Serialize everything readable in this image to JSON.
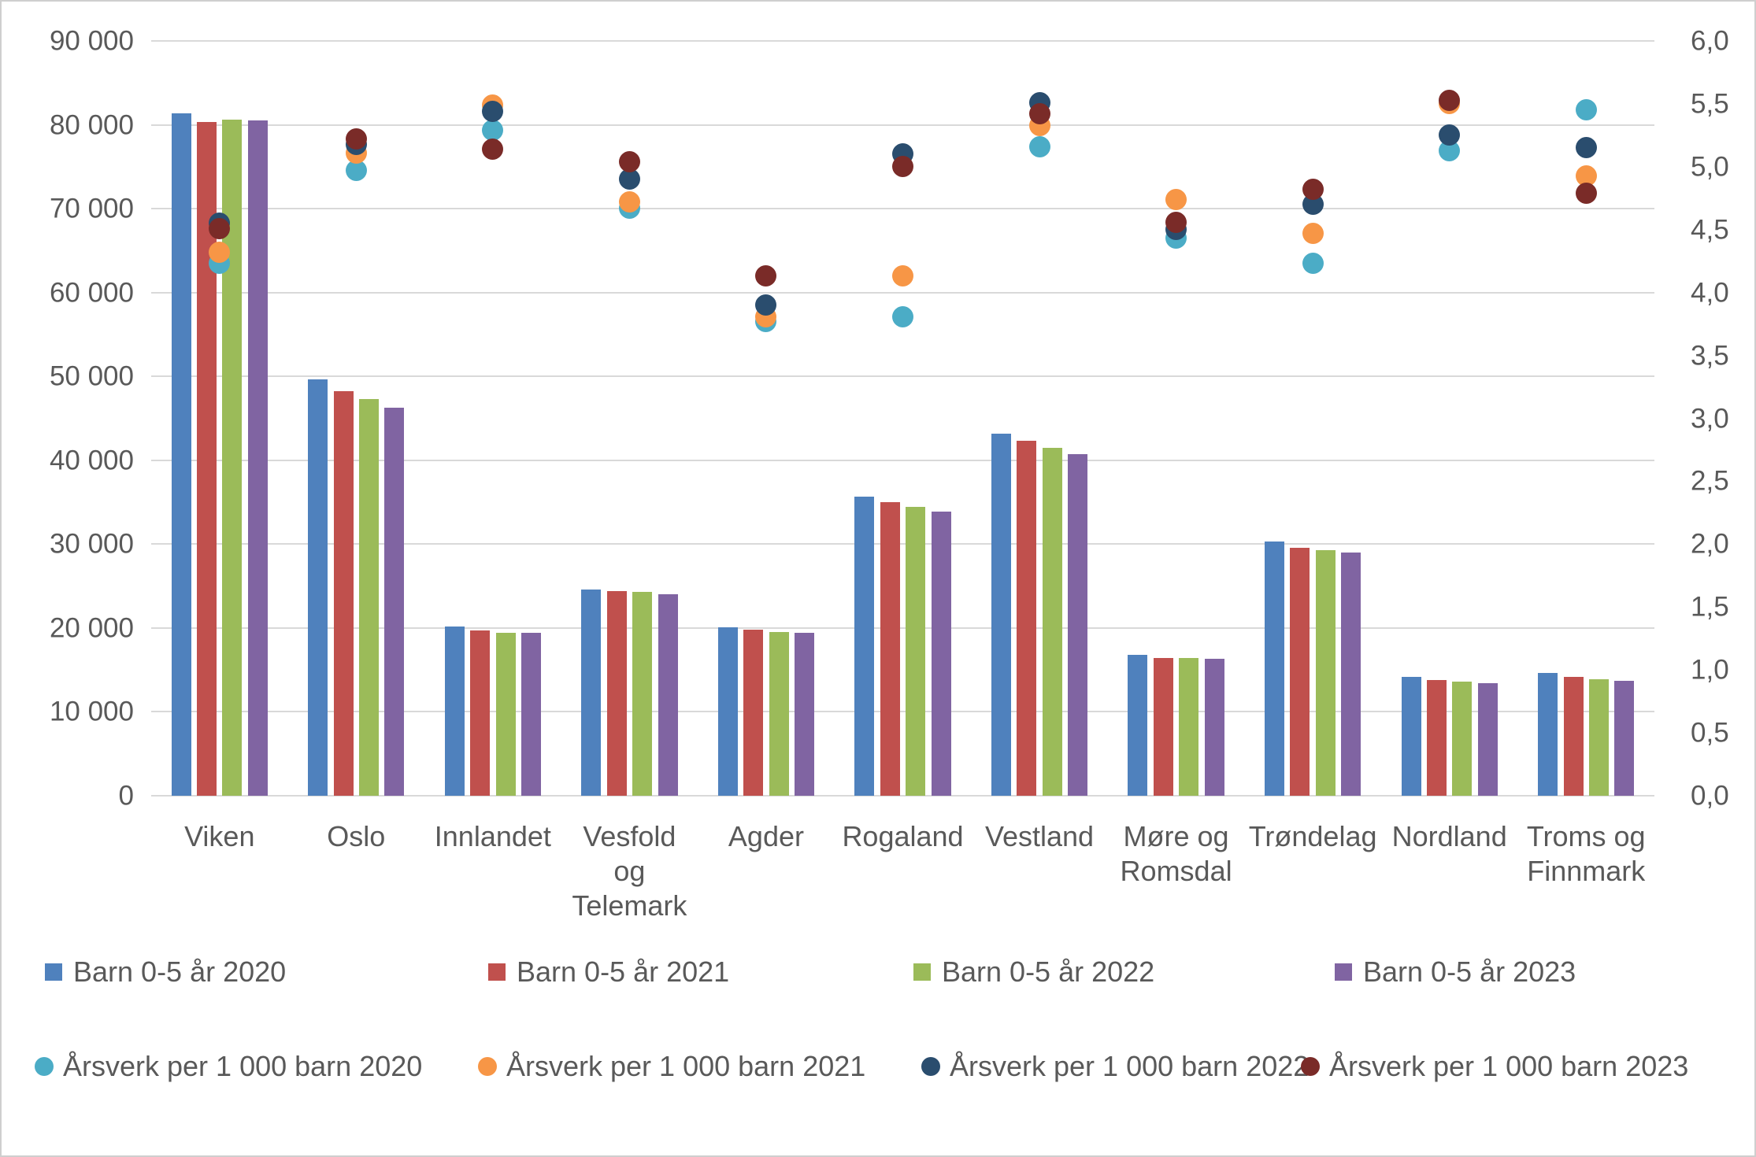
{
  "chart": {
    "title": "",
    "left_axis_ticks": [
      "90 000",
      "80 000",
      "70 000",
      "60 000",
      "50 000",
      "40 000",
      "30 000",
      "20 000",
      "10 000",
      "0"
    ],
    "right_axis_ticks": [
      "6,0",
      "5,5",
      "5,0",
      "4,5",
      "4,0",
      "3,5",
      "3,0",
      "2,5",
      "2,0",
      "1,5",
      "1,0",
      "0,5",
      "0,0"
    ],
    "category_display_lines": [
      [
        "Viken"
      ],
      [
        "Oslo"
      ],
      [
        "Innlandet"
      ],
      [
        "Vesfold",
        "og",
        "Telemark"
      ],
      [
        "Agder"
      ],
      [
        "Rogaland"
      ],
      [
        "Vestland"
      ],
      [
        "Møre og",
        "Romsdal"
      ],
      [
        "Trøndelag"
      ],
      [
        "Nordland"
      ],
      [
        "Troms og",
        "Finnmark"
      ]
    ],
    "colors": {
      "bar_2020": "#4F81BD",
      "bar_2021": "#C0504D",
      "bar_2022": "#9BBB59",
      "bar_2023": "#8064A2",
      "dot_2020": "#4BACC6",
      "dot_2021": "#F79646",
      "dot_2022": "#2A4D6E",
      "dot_2023": "#7A2B28",
      "gridline": "#d9d9d9",
      "axis_text": "#595959"
    },
    "legend_bars": [
      "Barn 0-5 år 2020",
      "Barn 0-5 år 2021",
      "Barn 0-5 år 2022",
      "Barn 0-5 år 2023"
    ],
    "legend_dots": [
      "Årsverk per 1 000 barn 2020",
      "Årsverk per 1 000 barn 2021",
      "Årsverk per 1 000 barn 2022",
      "Årsverk per 1 000 barn 2023"
    ]
  },
  "chart_data": [
    {
      "type": "bar",
      "title": "",
      "axis": "left",
      "ylim": [
        0,
        90000
      ],
      "grid": true,
      "categories": [
        "Viken",
        "Oslo",
        "Innlandet",
        "Vesfold og Telemark",
        "Agder",
        "Rogaland",
        "Vestland",
        "Møre og Romsdal",
        "Trøndelag",
        "Nordland",
        "Troms og Finnmark"
      ],
      "series": [
        {
          "name": "Barn 0-5 år 2020",
          "color": "#4F81BD",
          "values": [
            81400,
            49600,
            20200,
            24600,
            20100,
            35700,
            43200,
            16800,
            30300,
            14200,
            14600
          ]
        },
        {
          "name": "Barn 0-5 år 2021",
          "color": "#C0504D",
          "values": [
            80300,
            48200,
            19700,
            24400,
            19800,
            35000,
            42300,
            16400,
            29600,
            13800,
            14200
          ]
        },
        {
          "name": "Barn 0-5 år 2022",
          "color": "#9BBB59",
          "values": [
            80600,
            47300,
            19400,
            24300,
            19500,
            34400,
            41500,
            16400,
            29300,
            13600,
            13900
          ]
        },
        {
          "name": "Barn 0-5 år 2023",
          "color": "#8064A2",
          "values": [
            80500,
            46300,
            19400,
            24000,
            19400,
            33900,
            40700,
            16300,
            29000,
            13400,
            13700
          ]
        }
      ]
    },
    {
      "type": "scatter",
      "title": "",
      "axis": "right",
      "ylim": [
        0,
        6
      ],
      "grid": false,
      "categories": [
        "Viken",
        "Oslo",
        "Innlandet",
        "Vesfold og Telemark",
        "Agder",
        "Rogaland",
        "Vestland",
        "Møre og Romsdal",
        "Trøndelag",
        "Nordland",
        "Troms og Finnmark"
      ],
      "series": [
        {
          "name": "Årsverk per 1 000 barn 2020",
          "color": "#4BACC6",
          "values": [
            4.23,
            4.97,
            5.29,
            4.67,
            3.77,
            3.81,
            5.16,
            4.43,
            4.23,
            5.13,
            5.45
          ]
        },
        {
          "name": "Årsverk per 1 000 barn 2021",
          "color": "#F79646",
          "values": [
            4.32,
            5.11,
            5.49,
            4.72,
            3.81,
            4.13,
            5.33,
            4.74,
            4.47,
            5.5,
            4.93
          ]
        },
        {
          "name": "Årsverk per 1 000 barn 2022",
          "color": "#2A4D6E",
          "values": [
            4.55,
            5.18,
            5.44,
            4.9,
            3.9,
            5.1,
            5.51,
            4.5,
            4.7,
            5.25,
            5.15
          ]
        },
        {
          "name": "Årsverk per 1 000 barn 2023",
          "color": "#7A2B28",
          "values": [
            4.51,
            5.22,
            5.14,
            5.04,
            4.13,
            5.0,
            5.42,
            4.56,
            4.82,
            5.53,
            4.79
          ]
        }
      ]
    }
  ]
}
